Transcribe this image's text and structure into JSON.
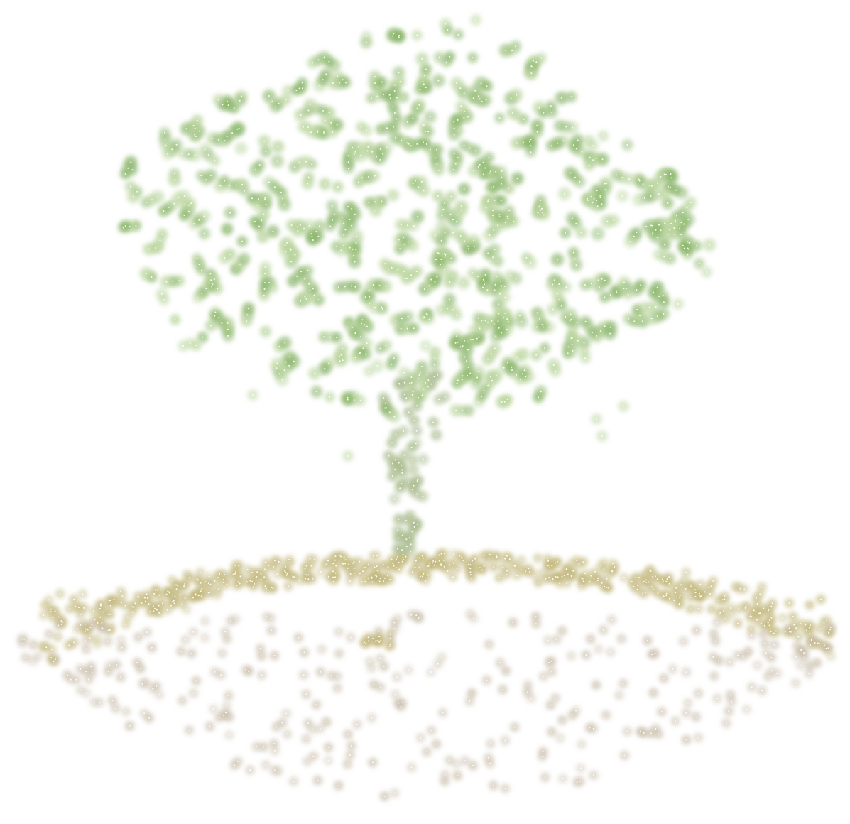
{
  "scene": {
    "subject": "point-cloud-tree",
    "colors": {
      "background": "#ffffff",
      "foliage_dark": "#8ab56a",
      "foliage_light": "#b9d49c",
      "trunk": "#a7b98a",
      "ground_ridge": "#c2b77c",
      "ground": "#c5b8a3",
      "point_core": "#ffffff"
    }
  }
}
